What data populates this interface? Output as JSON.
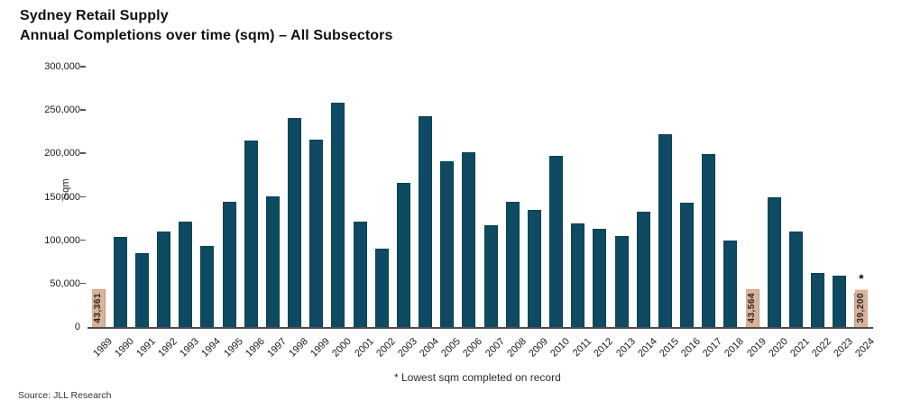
{
  "header": {
    "title_line1": "Sydney Retail Supply",
    "title_line2": "Annual Completions over time (sqm) – All Subsectors"
  },
  "footnote": "* Lowest sqm completed on record",
  "source": "Source: JLL Research",
  "colors": {
    "bar_teal": "#0e4a61",
    "highlight_tan": "#d9b297",
    "highlight_border": "#c09a7d",
    "axis": "#4d4d4d"
  },
  "chart_data": {
    "type": "bar",
    "title": "Sydney Retail Supply — Annual Completions over time (sqm) – All Subsectors",
    "xlabel": "",
    "ylabel": "Sqm",
    "ylim": [
      0,
      300000
    ],
    "ytick_step": 50000,
    "ytick_labels": [
      "0",
      "50,000",
      "100,000",
      "150,000",
      "200,000",
      "250,000",
      "300,000"
    ],
    "grid": "off",
    "legend": "none",
    "categories": [
      "1989",
      "1990",
      "1991",
      "1992",
      "1993",
      "1994",
      "1995",
      "1996",
      "1997",
      "1998",
      "1999",
      "2000",
      "2001",
      "2002",
      "2003",
      "2004",
      "2005",
      "2006",
      "2007",
      "2008",
      "2009",
      "2010",
      "2011",
      "2012",
      "2013",
      "2014",
      "2015",
      "2016",
      "2017",
      "2018",
      "2019",
      "2020",
      "2021",
      "2022",
      "2023",
      "2024"
    ],
    "values": [
      43361,
      103800,
      85500,
      110300,
      121500,
      93500,
      144000,
      214500,
      151000,
      240800,
      215800,
      258600,
      121500,
      90400,
      166400,
      242500,
      190800,
      201000,
      117400,
      144500,
      135300,
      197600,
      119900,
      113000,
      104800,
      133000,
      222600,
      142800,
      199600,
      99700,
      43564,
      150000,
      110000,
      62700,
      59600,
      39200
    ],
    "highlighted_bars": [
      {
        "index": 0,
        "year": "1989",
        "label": "43,361"
      },
      {
        "index": 30,
        "year": "2019",
        "label": "43,564"
      },
      {
        "index": 35,
        "year": "2024",
        "label": "39,200",
        "asterisk": "*"
      }
    ]
  }
}
